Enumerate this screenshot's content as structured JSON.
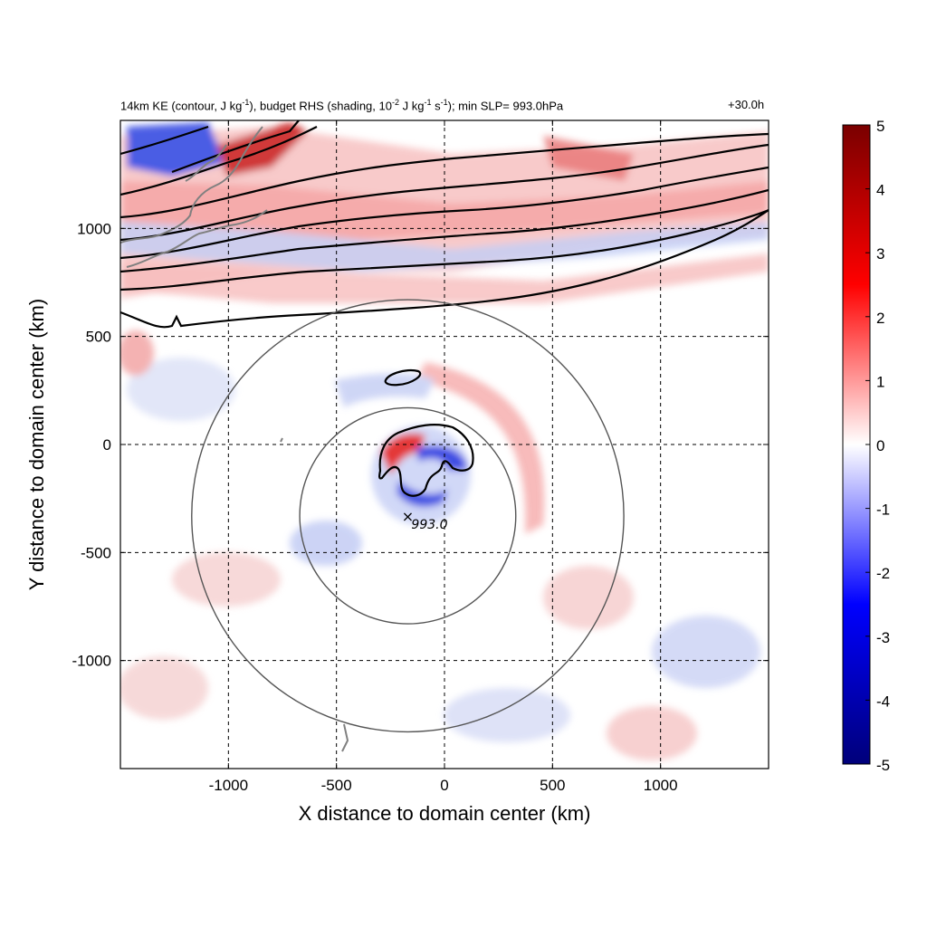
{
  "chart_data": {
    "type": "heatmap",
    "title_left_parts": [
      "14km KE (contour, J kg",
      "-1",
      "), budget RHS (shading, 10",
      "-2",
      " J kg",
      "-1",
      " s",
      "-1",
      "); min SLP= 993.0hPa"
    ],
    "title_right": "+30.0h",
    "xlabel": "X distance to domain center (km)",
    "ylabel": "Y distance to domain center (km)",
    "xlim": [
      -1500,
      1500
    ],
    "ylim": [
      -1500,
      1500
    ],
    "xticks": [
      -1000,
      -500,
      0,
      500,
      1000
    ],
    "yticks": [
      -1000,
      -500,
      0,
      500,
      1000
    ],
    "xtick_labels": [
      "-1000",
      "-500",
      "0",
      "500",
      "1000"
    ],
    "ytick_labels": [
      "-1000",
      "-500",
      "0",
      "500",
      "1000"
    ],
    "grid": "dashed",
    "colorbar": {
      "vmin": -5,
      "vmax": 5,
      "ticks": [
        5,
        4,
        3,
        2,
        1,
        0,
        -1,
        -2,
        -3,
        -4,
        -5
      ],
      "tick_labels": [
        "5",
        "4",
        "3",
        "2",
        "1",
        "0",
        "-1",
        "-2",
        "-3",
        "-4",
        "-5"
      ],
      "colors": [
        "#00007a",
        "#0000ff",
        "#ffffff",
        "#ff0000",
        "#7a0000"
      ]
    },
    "storm_center": {
      "x": -170,
      "y": -330,
      "label": "993.0",
      "marker": "×"
    },
    "range_circles_radius_km": [
      500,
      1000
    ],
    "contour_color": "#000000",
    "coastline_color": "#808080"
  }
}
